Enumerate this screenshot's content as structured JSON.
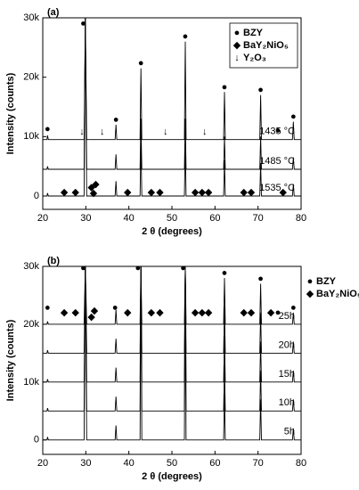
{
  "chart_data": [
    {
      "type": "line",
      "title": "(a)",
      "xlabel": "2 θ (degrees)",
      "ylabel": "Intensity (counts)",
      "x": [
        20,
        21.0,
        21.1,
        21.3,
        29.6,
        29.9,
        30.2,
        36.8,
        37.0,
        37.2,
        42.6,
        42.8,
        43.0,
        52.9,
        53.1,
        53.3,
        62.0,
        62.2,
        62.4,
        70.4,
        70.6,
        70.8,
        78.0,
        78.2,
        78.4,
        80
      ],
      "xlim": [
        20,
        80
      ],
      "xticks": [
        20,
        30,
        40,
        50,
        60,
        70,
        80
      ],
      "ylim": [
        -2250,
        30000
      ],
      "yticks": [
        {
          "value": 0,
          "label": "0"
        },
        {
          "value": 10000,
          "label": "10k"
        },
        {
          "value": 20000,
          "label": "20k"
        },
        {
          "value": 30000,
          "label": "30k"
        }
      ],
      "series": [
        {
          "name": "1435 °C",
          "color": "#000000",
          "values": [
            9500,
            9500,
            10200,
            9500,
            9500,
            30000,
            9500,
            9500,
            12000,
            9500,
            9500,
            21500,
            9500,
            9500,
            26000,
            9500,
            9500,
            17500,
            9500,
            9500,
            17000,
            9500,
            9500,
            12500,
            9500,
            9500
          ]
        },
        {
          "name": "1485 °C",
          "color": "#000000",
          "values": [
            4500,
            4500,
            5000,
            4500,
            4500,
            30000,
            4500,
            4500,
            7000,
            4500,
            4500,
            13000,
            4500,
            4500,
            13000,
            4500,
            4500,
            10000,
            4500,
            4500,
            10000,
            4500,
            4500,
            6500,
            4500,
            4500
          ]
        },
        {
          "name": "1535 °C",
          "color": "#000000",
          "values": [
            0,
            0,
            500,
            0,
            0,
            30000,
            0,
            0,
            2500,
            0,
            0,
            9000,
            0,
            0,
            9000,
            0,
            0,
            6000,
            0,
            0,
            5500,
            0,
            0,
            2000,
            0,
            0
          ]
        }
      ],
      "legend": [
        {
          "symbol": "●",
          "label": "BZY"
        },
        {
          "symbol": "◆",
          "label": "BaY₂NiO₅"
        },
        {
          "symbol": "↓",
          "label": "Y₂O₃"
        }
      ],
      "markers": [
        {
          "symbol": "●",
          "x": 21.1,
          "y": 11200
        },
        {
          "symbol": "●",
          "x": 29.4,
          "y": 29000
        },
        {
          "symbol": "●",
          "x": 37.0,
          "y": 12800
        },
        {
          "symbol": "●",
          "x": 42.8,
          "y": 22300
        },
        {
          "symbol": "●",
          "x": 53.1,
          "y": 26800
        },
        {
          "symbol": "●",
          "x": 62.2,
          "y": 18300
        },
        {
          "symbol": "●",
          "x": 70.6,
          "y": 17800
        },
        {
          "symbol": "●",
          "x": 74.6,
          "y": 11000
        },
        {
          "symbol": "●",
          "x": 78.2,
          "y": 13300
        },
        {
          "symbol": "↓",
          "x": 29.1,
          "y": 10800
        },
        {
          "symbol": "↓",
          "x": 33.8,
          "y": 10800
        },
        {
          "symbol": "↓",
          "x": 48.5,
          "y": 10800
        },
        {
          "symbol": "↓",
          "x": 57.6,
          "y": 10800
        },
        {
          "symbol": "◆",
          "x": 25.0,
          "y": 600
        },
        {
          "symbol": "◆",
          "x": 27.6,
          "y": 600
        },
        {
          "symbol": "◆",
          "x": 31.3,
          "y": 1400
        },
        {
          "symbol": "◆",
          "x": 32.3,
          "y": 1900
        },
        {
          "symbol": "◆",
          "x": 31.8,
          "y": 400
        },
        {
          "symbol": "◆",
          "x": 39.7,
          "y": 600
        },
        {
          "symbol": "◆",
          "x": 45.2,
          "y": 600
        },
        {
          "symbol": "◆",
          "x": 47.2,
          "y": 600
        },
        {
          "symbol": "◆",
          "x": 55.4,
          "y": 600
        },
        {
          "symbol": "◆",
          "x": 57.0,
          "y": 600
        },
        {
          "symbol": "◆",
          "x": 58.5,
          "y": 600
        },
        {
          "symbol": "◆",
          "x": 66.7,
          "y": 600
        },
        {
          "symbol": "◆",
          "x": 68.4,
          "y": 600
        },
        {
          "symbol": "◆",
          "x": 75.8,
          "y": 600
        }
      ]
    },
    {
      "type": "line",
      "title": "(b)",
      "xlabel": "2 θ (degrees)",
      "ylabel": "Intensity (counts)",
      "x": [
        20,
        21.0,
        21.1,
        21.3,
        29.6,
        29.9,
        30.2,
        36.8,
        37.0,
        37.2,
        42.6,
        42.8,
        43.0,
        52.9,
        53.1,
        53.3,
        62.0,
        62.2,
        62.4,
        70.4,
        70.6,
        70.8,
        78.0,
        78.2,
        78.4,
        80
      ],
      "xlim": [
        20,
        80
      ],
      "xticks": [
        20,
        30,
        40,
        50,
        60,
        70,
        80
      ],
      "ylim": [
        -2500,
        30000
      ],
      "yticks": [
        {
          "value": 0,
          "label": "0"
        },
        {
          "value": 10000,
          "label": "10k"
        },
        {
          "value": 20000,
          "label": "20k"
        },
        {
          "value": 30000,
          "label": "30k"
        }
      ],
      "series": [
        {
          "name": "25h",
          "color": "#000000",
          "values": [
            20000,
            20000,
            20500,
            20000,
            20000,
            30000,
            20000,
            20000,
            22500,
            20000,
            20000,
            30000,
            20000,
            20000,
            30000,
            20000,
            20000,
            28000,
            20000,
            20000,
            27000,
            20000,
            20000,
            22000,
            20000,
            20000
          ]
        },
        {
          "name": "20h",
          "color": "#000000",
          "values": [
            15000,
            15000,
            15500,
            15000,
            15000,
            30000,
            15000,
            15000,
            17500,
            15000,
            15000,
            30000,
            15000,
            15000,
            30000,
            15000,
            15000,
            23000,
            15000,
            15000,
            22000,
            15000,
            15000,
            17000,
            15000,
            15000
          ]
        },
        {
          "name": "15h",
          "color": "#000000",
          "values": [
            10000,
            10000,
            10500,
            10000,
            10000,
            30000,
            10000,
            10000,
            12500,
            10000,
            10000,
            30000,
            10000,
            10000,
            30000,
            10000,
            10000,
            18000,
            10000,
            10000,
            17000,
            10000,
            10000,
            12000,
            10000,
            10000
          ]
        },
        {
          "name": "10h",
          "color": "#000000",
          "values": [
            5000,
            5000,
            5500,
            5000,
            5000,
            30000,
            5000,
            5000,
            7500,
            5000,
            5000,
            30000,
            5000,
            5000,
            30000,
            5000,
            5000,
            13000,
            5000,
            5000,
            12000,
            5000,
            5000,
            7000,
            5000,
            5000
          ]
        },
        {
          "name": "5h",
          "color": "#000000",
          "values": [
            0,
            0,
            500,
            0,
            0,
            30000,
            0,
            0,
            2500,
            0,
            0,
            30000,
            0,
            0,
            30000,
            0,
            0,
            8000,
            0,
            0,
            7000,
            0,
            0,
            2000,
            0,
            0
          ]
        }
      ],
      "legend": [
        {
          "symbol": "●",
          "label": "BZY"
        },
        {
          "symbol": "◆",
          "label": "BaY₂NiO₅"
        }
      ],
      "markers": [
        {
          "symbol": "●",
          "x": 21.1,
          "y": 22800
        },
        {
          "symbol": "●",
          "x": 29.4,
          "y": 29700
        },
        {
          "symbol": "●",
          "x": 36.8,
          "y": 22800
        },
        {
          "symbol": "●",
          "x": 42.1,
          "y": 29700
        },
        {
          "symbol": "●",
          "x": 52.6,
          "y": 29700
        },
        {
          "symbol": "●",
          "x": 62.2,
          "y": 28800
        },
        {
          "symbol": "●",
          "x": 70.6,
          "y": 27800
        },
        {
          "symbol": "●",
          "x": 74.6,
          "y": 22000
        },
        {
          "symbol": "●",
          "x": 78.2,
          "y": 22800
        },
        {
          "symbol": "◆",
          "x": 25.0,
          "y": 22000
        },
        {
          "symbol": "◆",
          "x": 27.6,
          "y": 22000
        },
        {
          "symbol": "◆",
          "x": 31.3,
          "y": 21200
        },
        {
          "symbol": "◆",
          "x": 32.0,
          "y": 22300
        },
        {
          "symbol": "◆",
          "x": 39.7,
          "y": 22000
        },
        {
          "symbol": "◆",
          "x": 45.2,
          "y": 22000
        },
        {
          "symbol": "◆",
          "x": 47.2,
          "y": 22000
        },
        {
          "symbol": "◆",
          "x": 55.4,
          "y": 22000
        },
        {
          "symbol": "◆",
          "x": 57.0,
          "y": 22000
        },
        {
          "symbol": "◆",
          "x": 58.5,
          "y": 22000
        },
        {
          "symbol": "◆",
          "x": 66.7,
          "y": 22000
        },
        {
          "symbol": "◆",
          "x": 68.4,
          "y": 22000
        },
        {
          "symbol": "◆",
          "x": 73.0,
          "y": 22000
        }
      ]
    }
  ]
}
